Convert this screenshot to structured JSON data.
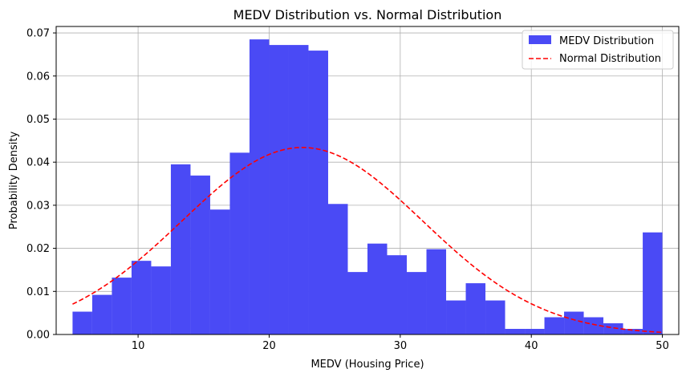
{
  "chart_data": {
    "type": "bar",
    "title": "MEDV Distribution vs. Normal Distribution",
    "xlabel": "MEDV (Housing Price)",
    "ylabel": "Probability Density",
    "xlim": [
      3.75,
      51.25
    ],
    "ylim": [
      0,
      0.0715
    ],
    "grid": true,
    "legend_position": "top-right",
    "x_ticks": [
      10,
      20,
      30,
      40,
      50
    ],
    "y_ticks": [
      0.0,
      0.01,
      0.02,
      0.03,
      0.04,
      0.05,
      0.06,
      0.07
    ],
    "y_tick_labels": [
      "0.00",
      "0.01",
      "0.02",
      "0.03",
      "0.04",
      "0.05",
      "0.06",
      "0.07"
    ],
    "histogram": {
      "name": "MEDV Distribution",
      "color": "#4a4af5",
      "bin_start": 5.0,
      "bin_width": 1.5,
      "values": [
        0.0053,
        0.0092,
        0.0132,
        0.0171,
        0.0158,
        0.0395,
        0.0369,
        0.029,
        0.0422,
        0.0685,
        0.0672,
        0.0672,
        0.0659,
        0.0303,
        0.0145,
        0.0211,
        0.0184,
        0.0145,
        0.0198,
        0.0079,
        0.0119,
        0.0079,
        0.0013,
        0.0013,
        0.004,
        0.0053,
        0.004,
        0.0026,
        0.0013,
        0.0237
      ]
    },
    "normal_curve": {
      "name": "Normal Distribution",
      "color": "#ff0000",
      "mean": 22.53,
      "std": 9.19,
      "x_range": [
        5,
        50
      ]
    }
  }
}
